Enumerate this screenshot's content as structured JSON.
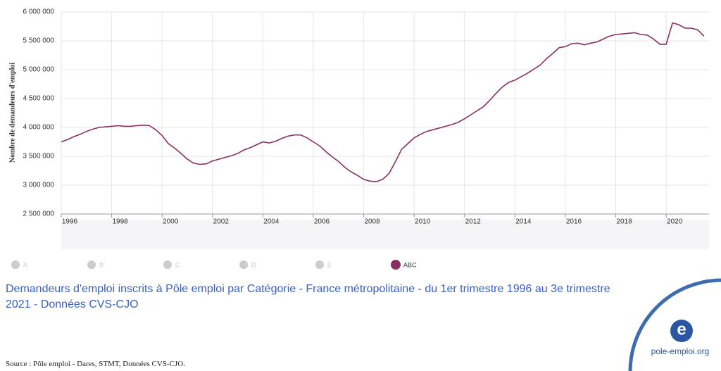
{
  "chart_data": {
    "type": "line",
    "y_label": "Nombre de demandeurs d'emploi",
    "x": [
      1996,
      1996.25,
      1996.5,
      1996.75,
      1997,
      1997.25,
      1997.5,
      1997.75,
      1998,
      1998.25,
      1998.5,
      1998.75,
      1999,
      1999.25,
      1999.5,
      1999.75,
      2000,
      2000.25,
      2000.5,
      2000.75,
      2001,
      2001.25,
      2001.5,
      2001.75,
      2002,
      2002.25,
      2002.5,
      2002.75,
      2003,
      2003.25,
      2003.5,
      2003.75,
      2004,
      2004.25,
      2004.5,
      2004.75,
      2005,
      2005.25,
      2005.5,
      2005.75,
      2006,
      2006.25,
      2006.5,
      2006.75,
      2007,
      2007.25,
      2007.5,
      2007.75,
      2008,
      2008.25,
      2008.5,
      2008.75,
      2009,
      2009.25,
      2009.5,
      2009.75,
      2010,
      2010.25,
      2010.5,
      2010.75,
      2011,
      2011.25,
      2011.5,
      2011.75,
      2012,
      2012.25,
      2012.5,
      2012.75,
      2013,
      2013.25,
      2013.5,
      2013.75,
      2014,
      2014.25,
      2014.5,
      2014.75,
      2015,
      2015.25,
      2015.5,
      2015.75,
      2016,
      2016.25,
      2016.5,
      2016.75,
      2017,
      2017.25,
      2017.5,
      2017.75,
      2018,
      2018.25,
      2018.5,
      2018.75,
      2019,
      2019.25,
      2019.5,
      2019.75,
      2020,
      2020.25,
      2020.5,
      2020.75,
      2021,
      2021.25,
      2021.5
    ],
    "series": [
      {
        "name": "ABC",
        "color": "#8b2f62",
        "values": [
          3750000,
          3790000,
          3840000,
          3880000,
          3930000,
          3970000,
          4000000,
          4010000,
          4020000,
          4030000,
          4020000,
          4020000,
          4030000,
          4040000,
          4030000,
          3960000,
          3860000,
          3720000,
          3640000,
          3550000,
          3450000,
          3380000,
          3360000,
          3370000,
          3420000,
          3450000,
          3480000,
          3510000,
          3550000,
          3610000,
          3650000,
          3700000,
          3750000,
          3730000,
          3760000,
          3810000,
          3850000,
          3870000,
          3870000,
          3820000,
          3750000,
          3680000,
          3580000,
          3490000,
          3410000,
          3310000,
          3230000,
          3170000,
          3100000,
          3070000,
          3060000,
          3100000,
          3200000,
          3400000,
          3620000,
          3720000,
          3820000,
          3880000,
          3930000,
          3960000,
          3990000,
          4020000,
          4050000,
          4090000,
          4150000,
          4220000,
          4290000,
          4360000,
          4470000,
          4590000,
          4700000,
          4780000,
          4820000,
          4880000,
          4940000,
          5010000,
          5080000,
          5190000,
          5280000,
          5380000,
          5400000,
          5450000,
          5460000,
          5430000,
          5460000,
          5480000,
          5530000,
          5580000,
          5610000,
          5620000,
          5630000,
          5640000,
          5610000,
          5600000,
          5530000,
          5440000,
          5440000,
          5810000,
          5780000,
          5720000,
          5720000,
          5690000,
          5580000
        ]
      }
    ],
    "inactive_series": [
      "A",
      "B",
      "C",
      "D",
      "E"
    ],
    "xlim": [
      1996,
      2021.7
    ],
    "xticks": [
      1996,
      1998,
      2000,
      2002,
      2004,
      2006,
      2008,
      2010,
      2012,
      2014,
      2016,
      2018,
      2020
    ],
    "ylim": [
      2500000,
      6000000
    ],
    "yticks": [
      {
        "value": 2500000,
        "label": "2 500 000"
      },
      {
        "value": 3000000,
        "label": "3 000 000"
      },
      {
        "value": 3500000,
        "label": "3 500 000"
      },
      {
        "value": 4000000,
        "label": "4 000 000"
      },
      {
        "value": 4500000,
        "label": "4 500 000"
      },
      {
        "value": 5000000,
        "label": "5 000 000"
      },
      {
        "value": 5500000,
        "label": "5 500 000"
      },
      {
        "value": 6000000,
        "label": "6 000 000"
      }
    ],
    "grid": true
  },
  "caption": "Demandeurs d'emploi inscrits à Pôle emploi par Catégorie - France métropolitaine - du 1er trimestre 1996 au 3e trimestre 2021 - Données CVS-CJO",
  "source": "Source : Pôle emploi - Dares, STMT, Données CVS-CJO.",
  "logo": {
    "mark": "e",
    "text": "pole-emploi.org"
  }
}
